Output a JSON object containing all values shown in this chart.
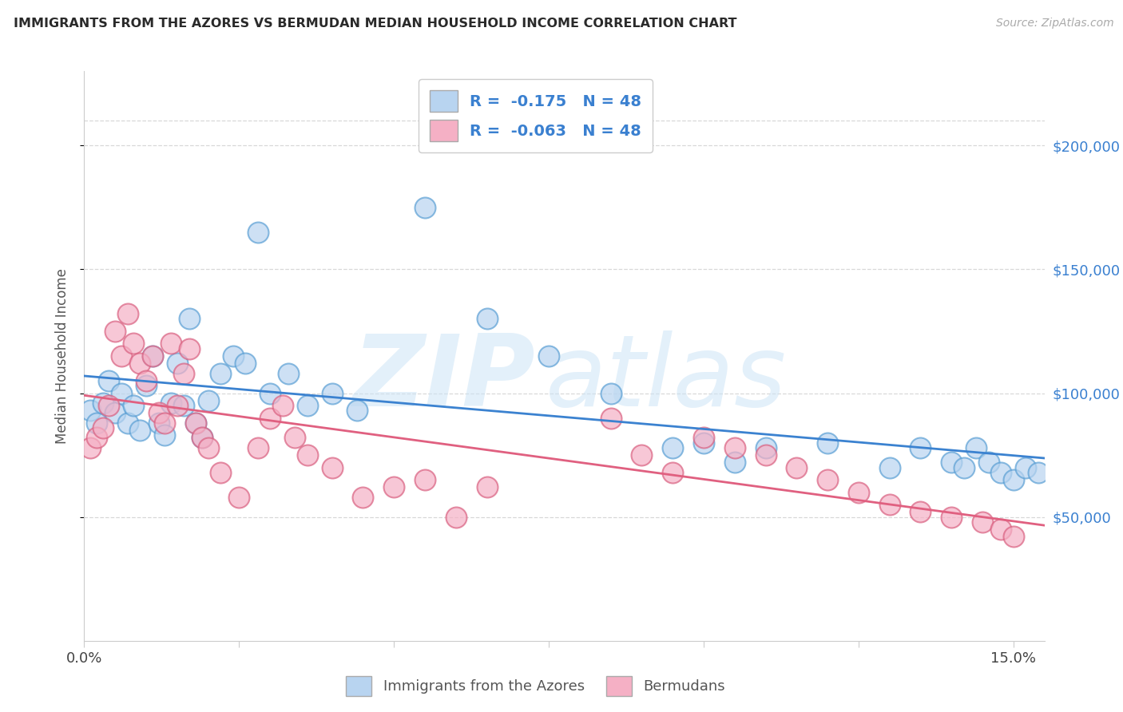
{
  "title": "IMMIGRANTS FROM THE AZORES VS BERMUDAN MEDIAN HOUSEHOLD INCOME CORRELATION CHART",
  "source": "Source: ZipAtlas.com",
  "ylabel": "Median Household Income",
  "legend_label1": "Immigrants from the Azores",
  "legend_label2": "Bermudans",
  "watermark_zip": "ZIP",
  "watermark_atlas": "atlas",
  "ytick_values": [
    50000,
    100000,
    150000,
    200000
  ],
  "xlim": [
    0.0,
    0.155
  ],
  "ylim": [
    0,
    230000
  ],
  "blue_scatter_color": "#b8d4f0",
  "blue_edge_color": "#5a9fd4",
  "pink_scatter_color": "#f5b0c5",
  "pink_edge_color": "#d96080",
  "blue_line_color": "#3b82d0",
  "pink_line_color": "#e06080",
  "title_color": "#2a2a2a",
  "source_color": "#aaaaaa",
  "legend_text_color": "#3a80d0",
  "grid_color": "#d8d8d8",
  "right_tick_color": "#3a80d0",
  "blue_x": [
    0.001,
    0.002,
    0.003,
    0.004,
    0.005,
    0.006,
    0.007,
    0.008,
    0.009,
    0.01,
    0.011,
    0.012,
    0.013,
    0.014,
    0.015,
    0.016,
    0.017,
    0.018,
    0.019,
    0.02,
    0.022,
    0.024,
    0.026,
    0.028,
    0.03,
    0.033,
    0.036,
    0.04,
    0.044,
    0.055,
    0.065,
    0.075,
    0.085,
    0.095,
    0.1,
    0.105,
    0.11,
    0.12,
    0.13,
    0.135,
    0.14,
    0.142,
    0.144,
    0.146,
    0.148,
    0.15,
    0.152,
    0.154
  ],
  "blue_y": [
    93000,
    88000,
    96000,
    105000,
    92000,
    100000,
    88000,
    95000,
    85000,
    103000,
    115000,
    88000,
    83000,
    96000,
    112000,
    95000,
    130000,
    88000,
    82000,
    97000,
    108000,
    115000,
    112000,
    165000,
    100000,
    108000,
    95000,
    100000,
    93000,
    175000,
    130000,
    115000,
    100000,
    78000,
    80000,
    72000,
    78000,
    80000,
    70000,
    78000,
    72000,
    70000,
    78000,
    72000,
    68000,
    65000,
    70000,
    68000
  ],
  "pink_x": [
    0.001,
    0.002,
    0.003,
    0.004,
    0.005,
    0.006,
    0.007,
    0.008,
    0.009,
    0.01,
    0.011,
    0.012,
    0.013,
    0.014,
    0.015,
    0.016,
    0.017,
    0.018,
    0.019,
    0.02,
    0.022,
    0.025,
    0.028,
    0.03,
    0.032,
    0.034,
    0.036,
    0.04,
    0.045,
    0.05,
    0.055,
    0.06,
    0.065,
    0.085,
    0.09,
    0.095,
    0.1,
    0.105,
    0.11,
    0.115,
    0.12,
    0.125,
    0.13,
    0.135,
    0.14,
    0.145,
    0.148,
    0.15
  ],
  "pink_y": [
    78000,
    82000,
    86000,
    95000,
    125000,
    115000,
    132000,
    120000,
    112000,
    105000,
    115000,
    92000,
    88000,
    120000,
    95000,
    108000,
    118000,
    88000,
    82000,
    78000,
    68000,
    58000,
    78000,
    90000,
    95000,
    82000,
    75000,
    70000,
    58000,
    62000,
    65000,
    50000,
    62000,
    90000,
    75000,
    68000,
    82000,
    78000,
    75000,
    70000,
    65000,
    60000,
    55000,
    52000,
    50000,
    48000,
    45000,
    42000
  ]
}
